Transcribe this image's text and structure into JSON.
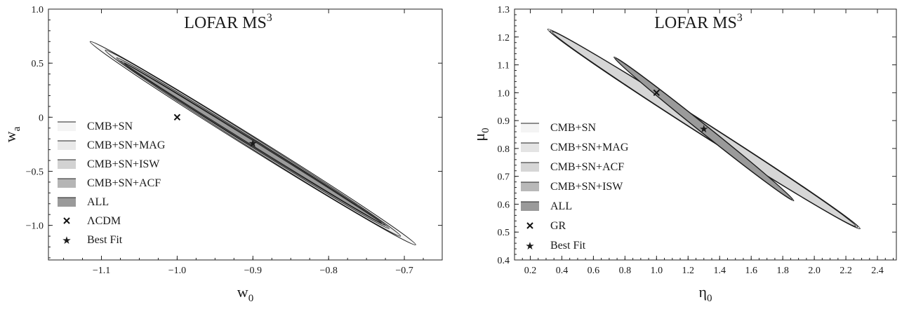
{
  "chart_data": [
    {
      "type": "contour",
      "title": "LOFAR MS",
      "title_superscript": "3",
      "xlabel": "w",
      "xlabel_subscript": "0",
      "ylabel": "w",
      "ylabel_subscript": "a",
      "xlim": [
        -1.17,
        -0.65
      ],
      "ylim": [
        -1.32,
        1.0
      ],
      "xticks": [
        -1.1,
        -1.0,
        -0.9,
        -0.8,
        -0.7
      ],
      "xtick_labels": [
        "−1.1",
        "−1.0",
        "−0.9",
        "−0.8",
        "−0.7"
      ],
      "yticks": [
        -1.0,
        -0.5,
        0,
        0.5,
        1.0
      ],
      "ytick_labels": [
        "−1.0",
        "−0.5",
        "0",
        "0.5",
        "1.0"
      ],
      "legend_position": "bottom-left",
      "series": [
        {
          "name": "CMB+SN",
          "fill": "#f4f4f4",
          "center": [
            -0.9,
            -0.24
          ],
          "axis_end": [
            -0.685,
            -1.18
          ],
          "semi_minor_end": [
            -0.895,
            -0.195
          ]
        },
        {
          "name": "CMB+SN+MAG",
          "fill": "#e9e9e9",
          "center": [
            -0.9,
            -0.24
          ],
          "axis_end": [
            -0.705,
            -1.1
          ],
          "semi_minor_end": [
            -0.896,
            -0.2
          ]
        },
        {
          "name": "CMB+SN+ISW",
          "fill": "#d2d2d2",
          "center": [
            -0.9,
            -0.24
          ],
          "axis_end": [
            -0.72,
            -1.03
          ],
          "semi_minor_end": [
            -0.897,
            -0.21
          ]
        },
        {
          "name": "CMB+SN+ACF",
          "fill": "#b5b5b5",
          "center": [
            -0.9,
            -0.24
          ],
          "axis_end": [
            -0.725,
            -1.0
          ],
          "semi_minor_end": [
            -0.898,
            -0.215
          ]
        },
        {
          "name": "ALL",
          "fill": "#9a9a9a",
          "center": [
            -0.9,
            -0.24
          ],
          "axis_end": [
            -0.73,
            -0.98
          ],
          "semi_minor_end": [
            -0.899,
            -0.22
          ]
        }
      ],
      "markers": [
        {
          "name": "ΛCDM",
          "symbol": "cross",
          "x": -1.0,
          "y": 0.0
        },
        {
          "name": "Best Fit",
          "symbol": "star",
          "x": -0.9,
          "y": -0.24
        }
      ]
    },
    {
      "type": "contour",
      "title": "LOFAR MS",
      "title_superscript": "3",
      "xlabel": "η",
      "xlabel_subscript": "0",
      "ylabel": "μ",
      "ylabel_subscript": "0",
      "xlim": [
        0.1,
        2.52
      ],
      "ylim": [
        0.4,
        1.3
      ],
      "xticks": [
        0.2,
        0.4,
        0.6,
        0.8,
        1.0,
        1.2,
        1.4,
        1.6,
        1.8,
        2.0,
        2.2,
        2.4
      ],
      "xtick_labels": [
        "0.2",
        "0.4",
        "0.6",
        "0.8",
        "1.0",
        "1.2",
        "1.4",
        "1.6",
        "1.8",
        "2.0",
        "2.2",
        "2.4"
      ],
      "yticks": [
        0.4,
        0.5,
        0.6,
        0.7,
        0.8,
        0.9,
        1.0,
        1.1,
        1.2,
        1.3
      ],
      "ytick_labels": [
        "0.4",
        "0.5",
        "0.6",
        "0.7",
        "0.8",
        "0.9",
        "1.0",
        "1.1",
        "1.2",
        "1.3"
      ],
      "legend_position": "bottom-left",
      "series": [
        {
          "name": "CMB+SN",
          "fill": "#f4f4f4",
          "center": [
            1.3,
            0.87
          ],
          "axis_end": [
            2.29,
            0.512
          ],
          "semi_minor_end": [
            1.31,
            0.893
          ]
        },
        {
          "name": "CMB+SN+MAG",
          "fill": "#e4e4e4",
          "center": [
            1.3,
            0.87
          ],
          "axis_end": [
            2.275,
            0.518
          ],
          "semi_minor_end": [
            1.31,
            0.892
          ]
        },
        {
          "name": "CMB+SN+ACF",
          "fill": "#d6d6d6",
          "center": [
            1.3,
            0.87
          ],
          "axis_end": [
            2.26,
            0.522
          ],
          "semi_minor_end": [
            1.31,
            0.891
          ]
        },
        {
          "name": "CMB+SN+ISW",
          "fill": "#b8b8b8",
          "center": [
            1.3,
            0.87
          ],
          "axis_end": [
            1.87,
            0.612
          ],
          "semi_minor_end": [
            1.307,
            0.886
          ]
        },
        {
          "name": "ALL",
          "fill": "#9a9a9a",
          "center": [
            1.3,
            0.87
          ],
          "axis_end": [
            1.86,
            0.617
          ],
          "semi_minor_end": [
            1.306,
            0.885
          ]
        }
      ],
      "markers": [
        {
          "name": "GR",
          "symbol": "cross",
          "x": 1.0,
          "y": 1.0
        },
        {
          "name": "Best Fit",
          "symbol": "star",
          "x": 1.3,
          "y": 0.87
        }
      ]
    }
  ]
}
